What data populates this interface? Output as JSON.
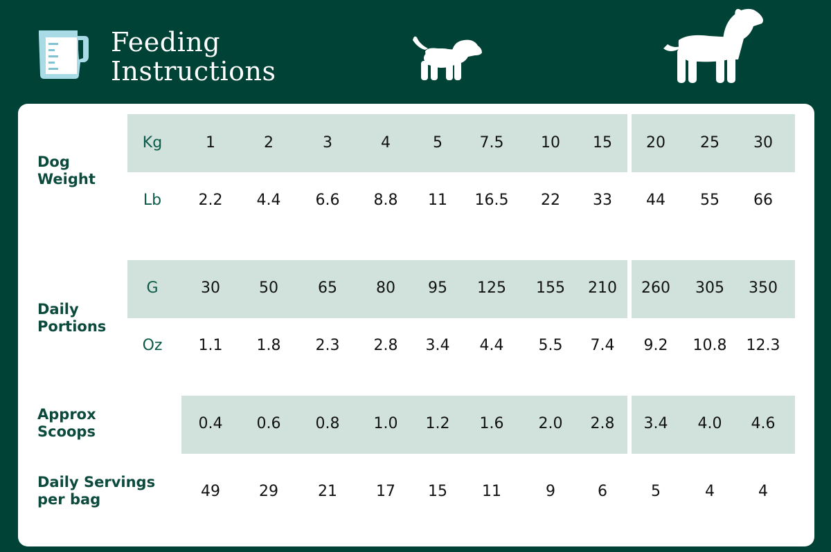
{
  "header": {
    "title_line1": "Feeding",
    "title_line2": "Instructions"
  },
  "icons": [
    "measuring-jug-icon",
    "puppy-icon",
    "adult-dog-icon"
  ],
  "colors": {
    "background": "#004236",
    "band": "#d0e2db",
    "label": "#0b4a3c",
    "text": "#111111"
  },
  "table": {
    "dog_weight": {
      "label_line1": "Dog",
      "label_line2": "Weight",
      "kg": {
        "unit": "Kg",
        "values": [
          "1",
          "2",
          "3",
          "4",
          "5",
          "7.5",
          "10",
          "15",
          "20",
          "25",
          "30"
        ]
      },
      "lb": {
        "unit": "Lb",
        "values": [
          "2.2",
          "4.4",
          "6.6",
          "8.8",
          "11",
          "16.5",
          "22",
          "33",
          "44",
          "55",
          "66"
        ]
      }
    },
    "daily_portions": {
      "label_line1": "Daily",
      "label_line2": "Portions",
      "g": {
        "unit": "G",
        "values": [
          "30",
          "50",
          "65",
          "80",
          "95",
          "125",
          "155",
          "210",
          "260",
          "305",
          "350"
        ]
      },
      "oz": {
        "unit": "Oz",
        "values": [
          "1.1",
          "1.8",
          "2.3",
          "2.8",
          "3.4",
          "4.4",
          "5.5",
          "7.4",
          "9.2",
          "10.8",
          "12.3"
        ]
      }
    },
    "approx_scoops": {
      "label_line1": "Approx",
      "label_line2": "Scoops",
      "values": [
        "0.4",
        "0.6",
        "0.8",
        "1.0",
        "1.2",
        "1.6",
        "2.0",
        "2.8",
        "3.4",
        "4.0",
        "4.6"
      ]
    },
    "daily_servings": {
      "label_line1": "Daily Servings",
      "label_line2": "per bag",
      "values": [
        "49",
        "29",
        "21",
        "17",
        "15",
        "11",
        "9",
        "6",
        "5",
        "4",
        "4"
      ]
    }
  }
}
